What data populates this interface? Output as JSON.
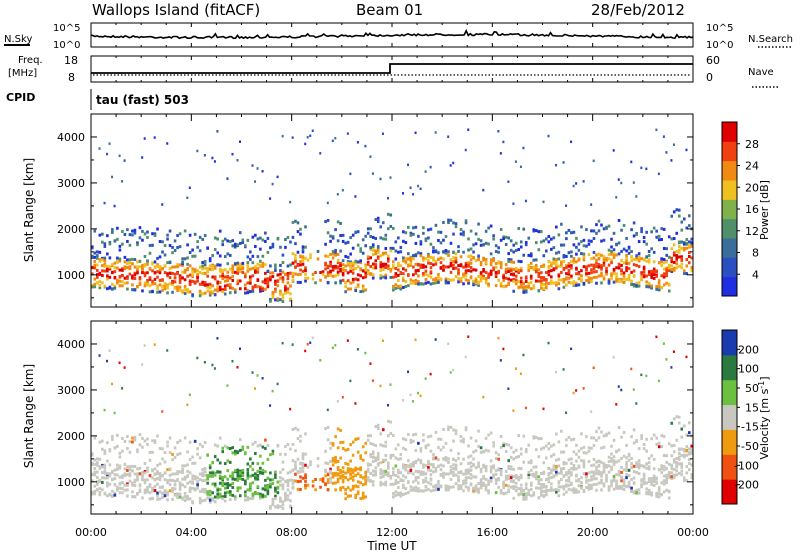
{
  "header": {
    "station": "Wallops Island (fitACF)",
    "beam": "Beam 01",
    "date": "28/Feb/2012"
  },
  "noise_panel": {
    "left_label": "N.Sky",
    "right_label": "N.Search",
    "left_ticks": [
      "10^5",
      "10^0"
    ],
    "right_ticks": [
      "10^5",
      "10^0"
    ]
  },
  "freq_panel": {
    "left_label_line1": "Freq.",
    "left_label_line2": "[MHz]",
    "left_ticks": [
      "18",
      "8"
    ],
    "right_label": "Nave",
    "right_ticks": [
      "60",
      "0"
    ]
  },
  "cpid": {
    "label": "CPID",
    "value": "tau (fast) 503"
  },
  "colors": {
    "power_scale": [
      "#1f2ee0",
      "#2a4fc0",
      "#3a6e9a",
      "#4f8f6a",
      "#7fb24a",
      "#f0c020",
      "#f08a10",
      "#f04010",
      "#e00000"
    ],
    "velocity_scale": [
      "#e00000",
      "#f05010",
      "#f09a10",
      "#c8c8c0",
      "#6cc040",
      "#2a7a40",
      "#1a3ab0"
    ]
  },
  "chart_data": [
    {
      "type": "heatmap",
      "panel": "power",
      "ylabel": "Slant Range [km]",
      "yticks": [
        "1000",
        "2000",
        "3000",
        "4000"
      ],
      "ylim": [
        300,
        4500
      ],
      "xlim": [
        0,
        24
      ],
      "colorbar": {
        "label": "Power [dB]",
        "ticks": [
          "4",
          "8",
          "12",
          "16",
          "20",
          "24",
          "28"
        ],
        "range": [
          0,
          32
        ]
      }
    },
    {
      "type": "heatmap",
      "panel": "velocity",
      "ylabel": "Slant Range [km]",
      "yticks": [
        "1000",
        "2000",
        "3000",
        "4000"
      ],
      "ylim": [
        300,
        4500
      ],
      "xlim": [
        0,
        24
      ],
      "xlabel": "Time UT",
      "xticks": [
        "00:00",
        "04:00",
        "08:00",
        "12:00",
        "16:00",
        "20:00",
        "00:00"
      ],
      "colorbar": {
        "label": "Velocity [m s^-1]",
        "ticks": [
          "200",
          "100",
          "50",
          "15",
          "-15",
          "-50",
          "-100",
          "-200"
        ]
      }
    }
  ]
}
